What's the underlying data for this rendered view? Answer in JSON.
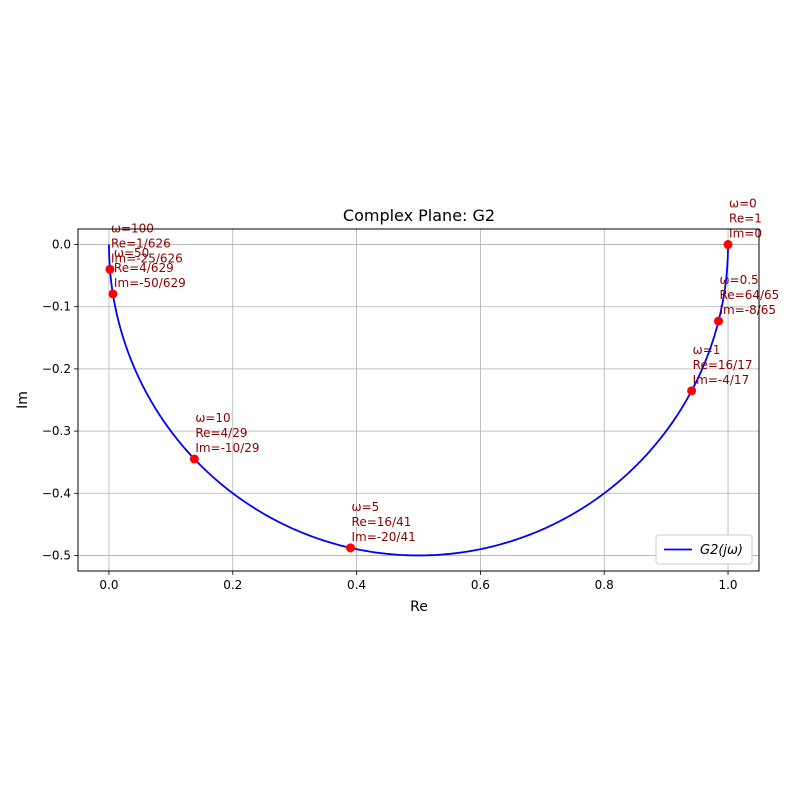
{
  "chart_data": {
    "type": "line",
    "title": "Complex Plane: G2",
    "xlabel": "Re",
    "ylabel": "Im",
    "xlim": [
      -0.05,
      1.05
    ],
    "ylim": [
      -0.525,
      0.025
    ],
    "xticks": [
      0.0,
      0.2,
      0.4,
      0.6,
      0.8,
      1.0
    ],
    "xtick_labels": [
      "0.0",
      "0.2",
      "0.4",
      "0.6",
      "0.8",
      "1.0"
    ],
    "yticks": [
      0.0,
      -0.1,
      -0.2,
      -0.3,
      -0.4,
      -0.5
    ],
    "ytick_labels": [
      "0.0",
      "−0.1",
      "−0.2",
      "−0.3",
      "−0.4",
      "−0.5"
    ],
    "grid": true,
    "legend_position": "bottom-right",
    "series": [
      {
        "name": "G2(jω)",
        "color": "#0000ff",
        "curve": "semicircle",
        "center": [
          0.5,
          0
        ],
        "radius": 0.5
      }
    ],
    "marker_color": "#ff0000",
    "points": [
      {
        "omega": "0",
        "re": 1.0,
        "im": 0.0,
        "labels": [
          "ω=0",
          "Re=1",
          "Im=0"
        ]
      },
      {
        "omega": "0.5",
        "re": 0.9846,
        "im": -0.1231,
        "labels": [
          "ω=0.5",
          "Re=64/65",
          "Im=-8/65"
        ]
      },
      {
        "omega": "1",
        "re": 0.9412,
        "im": -0.2353,
        "labels": [
          "ω=1",
          "Re=16/17",
          "Im=-4/17"
        ]
      },
      {
        "omega": "5",
        "re": 0.3902,
        "im": -0.4878,
        "labels": [
          "ω=5",
          "Re=16/41",
          "Im=-20/41"
        ]
      },
      {
        "omega": "10",
        "re": 0.1379,
        "im": -0.3448,
        "labels": [
          "ω=10",
          "Re=4/29",
          "Im=-10/29"
        ]
      },
      {
        "omega": "50",
        "re": 0.0064,
        "im": -0.0795,
        "labels": [
          "ω=50",
          "Re=4/629",
          "Im=-50/629"
        ]
      },
      {
        "omega": "100",
        "re": 0.0016,
        "im": -0.0399,
        "labels": [
          "ω=100",
          "Re=1/626",
          "Im=-25/626"
        ]
      }
    ]
  }
}
